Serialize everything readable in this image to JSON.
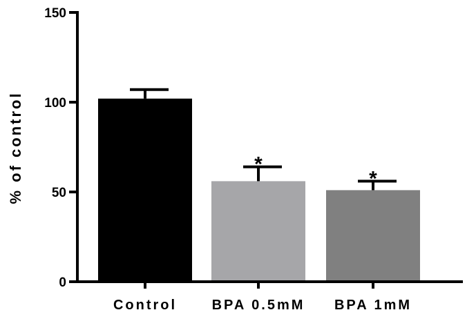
{
  "chart_data": {
    "type": "bar",
    "title": "",
    "xlabel": "",
    "ylabel": "% of control",
    "ylim": [
      0,
      150
    ],
    "yticks": [
      0,
      50,
      100,
      150
    ],
    "categories": [
      "Control",
      "BPA 0.5mM",
      "BPA 1mM"
    ],
    "values": [
      102,
      56,
      51
    ],
    "errors": [
      5,
      8,
      5
    ],
    "colors": [
      "#000000",
      "#a6a6a9",
      "#808080"
    ],
    "annotations": [
      "",
      "*",
      "*"
    ],
    "grid": false,
    "legend": "none"
  }
}
